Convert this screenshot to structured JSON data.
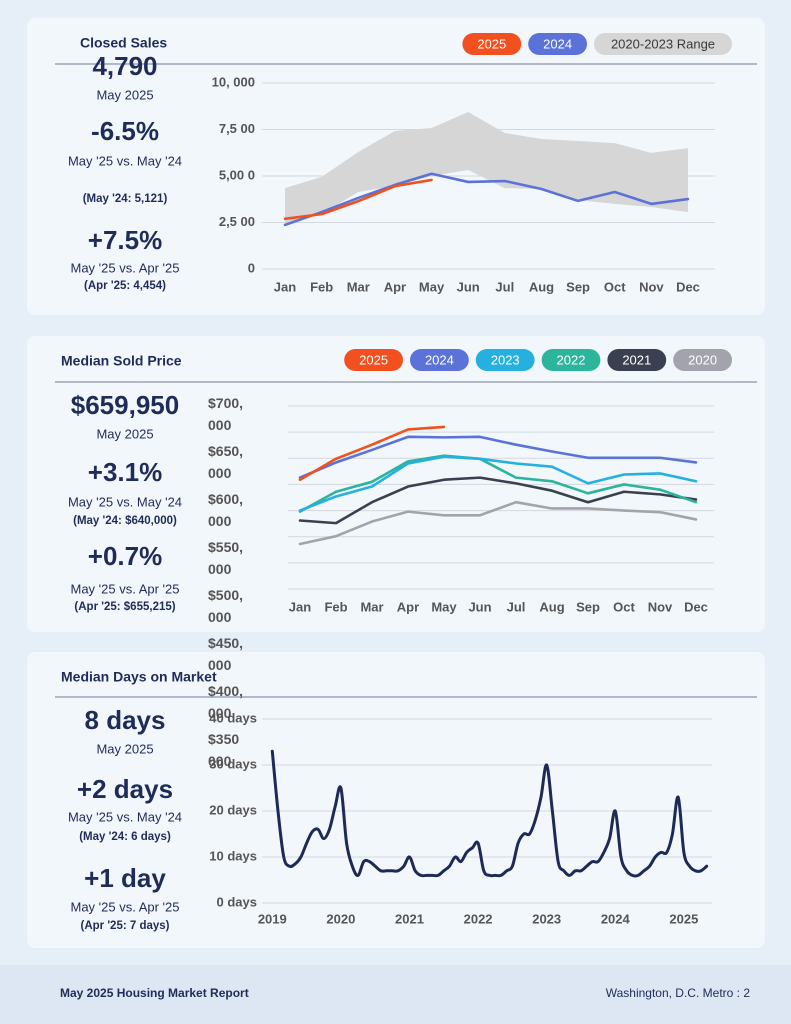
{
  "chart_data": [
    {
      "type": "line",
      "title": "Closed Sales",
      "legend": "top-right",
      "grid": true,
      "categories": [
        "Jan",
        "Feb",
        "Mar",
        "Apr",
        "May",
        "Jun",
        "Jul",
        "Aug",
        "Sep",
        "Oct",
        "Nov",
        "Dec"
      ],
      "ylim": [
        0,
        10000
      ],
      "yticks": [
        {
          "value": 10000,
          "label": "10, 000"
        },
        {
          "value": 7500,
          "label": "7,5 00"
        },
        {
          "value": 5000,
          "label": "5,00 0"
        },
        {
          "value": 2500,
          "label": "2,5 00"
        },
        0
      ],
      "series": [
        {
          "name": "2025",
          "color": "#f2501f",
          "values": [
            2700,
            2950,
            3650,
            4454,
            4790,
            null,
            null,
            null,
            null,
            null,
            null,
            null
          ]
        },
        {
          "name": "2024",
          "color": "#5b72d9",
          "values": [
            2370,
            3060,
            3820,
            4520,
            5121,
            4680,
            4730,
            4300,
            3660,
            4140,
            3500,
            3760
          ]
        },
        {
          "name": "2020-2023 Range",
          "color": "#d6d6d6",
          "low": [
            2420,
            2960,
            4140,
            4460,
            5000,
            5320,
            4350,
            4300,
            3710,
            3500,
            3330,
            3060
          ],
          "high": [
            4350,
            4950,
            6290,
            7420,
            7580,
            8440,
            7310,
            6990,
            6880,
            6770,
            6240,
            6500
          ]
        }
      ]
    },
    {
      "type": "line",
      "title": "Median Sold Price",
      "legend": "top-right",
      "grid": true,
      "categories": [
        "Jan",
        "Feb",
        "Mar",
        "Apr",
        "May",
        "Jun",
        "Jul",
        "Aug",
        "Sep",
        "Oct",
        "Nov",
        "Dec"
      ],
      "ylim": [
        350000,
        700000
      ],
      "yticks": [
        {
          "value": 700000,
          "label": "$700, 000"
        },
        {
          "value": 650000,
          "label": "$650, 000"
        },
        {
          "value": 600000,
          "label": "$600, 000"
        },
        {
          "value": 550000,
          "label": "$550, 000"
        },
        {
          "value": 500000,
          "label": "$500, 000"
        },
        {
          "value": 450000,
          "label": "$450, 000"
        },
        {
          "value": 400000,
          "label": "$400, 000"
        },
        {
          "value": 350000,
          "label": "$350 000"
        }
      ],
      "series": [
        {
          "name": "2025",
          "color": "#f2501f",
          "values": [
            559000,
            599000,
            626000,
            655215,
            659950,
            null,
            null,
            null,
            null,
            null,
            null,
            null
          ]
        },
        {
          "name": "2024",
          "color": "#5b72d9",
          "values": [
            563000,
            592000,
            616000,
            641000,
            640000,
            641000,
            626000,
            613000,
            601000,
            601000,
            601000,
            592000
          ]
        },
        {
          "name": "2023",
          "color": "#25b0e0",
          "values": [
            500000,
            527000,
            546000,
            590000,
            603000,
            599000,
            590000,
            584000,
            552000,
            569000,
            571000,
            556000
          ]
        },
        {
          "name": "2022",
          "color": "#2db59c",
          "values": [
            498000,
            536000,
            555000,
            594000,
            605000,
            599000,
            563000,
            556000,
            533000,
            550000,
            540000,
            516000
          ]
        },
        {
          "name": "2021",
          "color": "#3b4050",
          "values": [
            481000,
            476000,
            516000,
            546000,
            559000,
            563000,
            552000,
            538000,
            516000,
            536000,
            531000,
            521000
          ]
        },
        {
          "name": "2020",
          "color": "#a3a3ad",
          "values": [
            436000,
            451000,
            479000,
            498000,
            491000,
            491000,
            516000,
            504000,
            504000,
            500000,
            497000,
            483000
          ]
        }
      ]
    },
    {
      "type": "line",
      "title": "Median Days on Market",
      "grid": true,
      "xlim": [
        2018.85,
        2025.41
      ],
      "xticks": [
        2019,
        2020,
        2021,
        2022,
        2023,
        2024,
        2025
      ],
      "ylim": [
        0,
        40
      ],
      "yticks": [
        {
          "value": 40,
          "label": "40 days"
        },
        {
          "value": 30,
          "label": "30 days"
        },
        {
          "value": 20,
          "label": "20 days"
        },
        {
          "value": 10,
          "label": "10 days"
        },
        {
          "value": 0,
          "label": "0 days"
        }
      ],
      "x": [
        2019,
        2019.083,
        2019.167,
        2019.25,
        2019.333,
        2019.417,
        2019.5,
        2019.583,
        2019.667,
        2019.75,
        2019.833,
        2019.917,
        2020,
        2020.083,
        2020.167,
        2020.25,
        2020.333,
        2020.417,
        2020.5,
        2020.583,
        2020.667,
        2020.75,
        2020.833,
        2020.917,
        2021,
        2021.083,
        2021.167,
        2021.25,
        2021.333,
        2021.417,
        2021.5,
        2021.583,
        2021.667,
        2021.75,
        2021.833,
        2021.917,
        2022,
        2022.083,
        2022.167,
        2022.25,
        2022.333,
        2022.417,
        2022.5,
        2022.583,
        2022.667,
        2022.75,
        2022.833,
        2022.917,
        2023,
        2023.083,
        2023.167,
        2023.25,
        2023.333,
        2023.417,
        2023.5,
        2023.583,
        2023.667,
        2023.75,
        2023.833,
        2023.917,
        2024,
        2024.083,
        2024.167,
        2024.25,
        2024.333,
        2024.417,
        2024.5,
        2024.583,
        2024.667,
        2024.75,
        2024.833,
        2024.917,
        2025,
        2025.083,
        2025.167,
        2025.25,
        2025.333
      ],
      "series": [
        {
          "name": "Median Days on Market",
          "color": "#1c2a55",
          "values": [
            33,
            20,
            10,
            8,
            8.5,
            10,
            13,
            15.5,
            16,
            14,
            16,
            21,
            25,
            13,
            8,
            6,
            9,
            9,
            8,
            7,
            7,
            7,
            7,
            8,
            10,
            7,
            6,
            6,
            6,
            6,
            7,
            8,
            10,
            9,
            11,
            12,
            13,
            7,
            6,
            6,
            6,
            7,
            8,
            13,
            15,
            15,
            18,
            23,
            30,
            20,
            9,
            7,
            6,
            7,
            7,
            8,
            9,
            9,
            11,
            14,
            20,
            10,
            7,
            6,
            6,
            7,
            8,
            10,
            11,
            11,
            15,
            23,
            11,
            8,
            7,
            7,
            8
          ]
        }
      ]
    }
  ],
  "stats": [
    {
      "value": "4,790",
      "period": "May 2025",
      "changes": [
        {
          "value": "-6.5%",
          "comparison": "May '25 vs. May '24",
          "prior": "(May '24: 5,121)"
        },
        {
          "value": "+7.5%",
          "comparison": "May '25 vs. Apr '25",
          "prior": "(Apr '25: 4,454)"
        }
      ]
    },
    {
      "value": "$659,950",
      "period": "May 2025",
      "changes": [
        {
          "value": "+3.1%",
          "comparison": "May '25 vs. May '24",
          "prior": "(May '24: $640,000)"
        },
        {
          "value": "+0.7%",
          "comparison": "May '25 vs. Apr '25",
          "prior": "(Apr '25: $655,215)"
        }
      ]
    },
    {
      "value": "8 days",
      "period": "May 2025",
      "changes": [
        {
          "value": "+2 days",
          "comparison": "May '25 vs. May '24",
          "prior": "(May '24: 6 days)"
        },
        {
          "value": "+1 day",
          "comparison": "May '25 vs. Apr '25",
          "prior": "(Apr '25: 7 days)"
        }
      ]
    }
  ],
  "footer": {
    "title": "May 2025 Housing Market Report",
    "location": "Washington, D.C. Metro : 2"
  }
}
